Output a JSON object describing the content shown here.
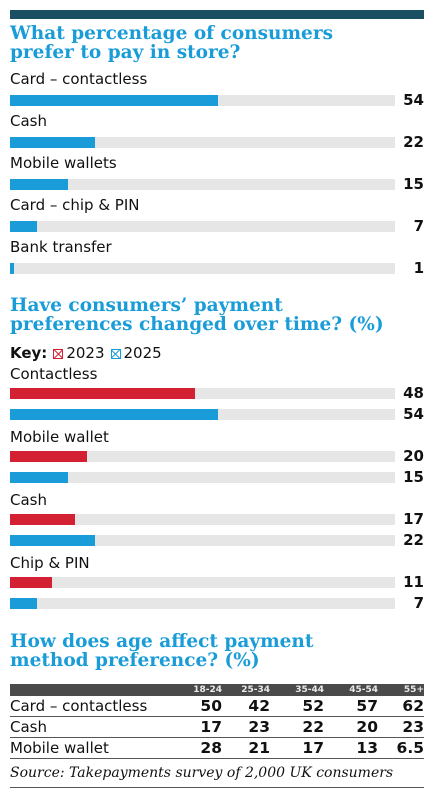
{
  "colors": {
    "blue": "#1a9cd8",
    "red": "#d42033",
    "track": "#e6e6e6",
    "top_bar": "#1b4f63"
  },
  "chart_data": [
    {
      "type": "bar",
      "title": "What percentage of consumers prefer to pay in store?",
      "categories": [
        "Card – contactless",
        "Cash",
        "Mobile wallets",
        "Card – chip & PIN",
        "Bank transfer"
      ],
      "values": [
        54,
        22,
        15,
        7,
        1
      ],
      "ylim": [
        0,
        100
      ]
    },
    {
      "type": "bar",
      "title": "Have consumers’ payment preferences changed over time? (%)",
      "key_label": "Key:",
      "categories": [
        "Contactless",
        "Mobile wallet",
        "Cash",
        "Chip & PIN"
      ],
      "series": [
        {
          "name": "2023",
          "values": [
            48,
            20,
            17,
            11
          ]
        },
        {
          "name": "2025",
          "values": [
            54,
            15,
            22,
            7
          ]
        }
      ],
      "ylim": [
        0,
        100
      ]
    },
    {
      "type": "table",
      "title": "How does age affect payment method preference? (%)",
      "columns": [
        "18-24",
        "25-34",
        "35-44",
        "45-54",
        "55+"
      ],
      "rows": [
        {
          "label": "Card – contactless",
          "values": [
            "50",
            "42",
            "52",
            "57",
            "62"
          ]
        },
        {
          "label": "Cash",
          "values": [
            "17",
            "23",
            "22",
            "20",
            "23"
          ]
        },
        {
          "label": "Mobile wallet",
          "values": [
            "28",
            "21",
            "17",
            "13",
            "6.5"
          ]
        }
      ]
    }
  ],
  "source": "Source: Takepayments survey of 2,000 UK consumers"
}
